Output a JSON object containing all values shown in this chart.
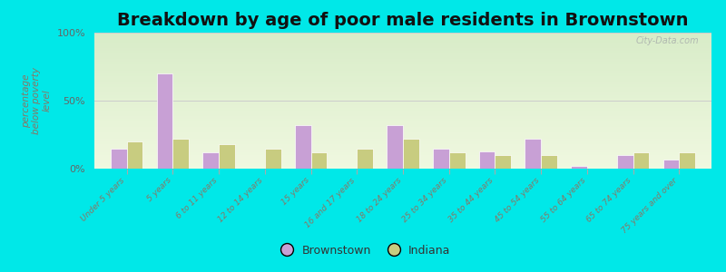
{
  "title": "Breakdown by age of poor male residents in Brownstown",
  "ylabel": "percentage\nbelow poverty\nlevel",
  "categories": [
    "Under 5 years",
    "5 years",
    "6 to 11 years",
    "12 to 14 years",
    "15 years",
    "16 and 17 years",
    "18 to 24 years",
    "25 to 34 years",
    "35 to 44 years",
    "45 to 54 years",
    "55 to 64 years",
    "65 to 74 years",
    "75 years and over"
  ],
  "brownstown": [
    15,
    70,
    12,
    0,
    32,
    0,
    32,
    15,
    13,
    22,
    2,
    10,
    7
  ],
  "indiana": [
    20,
    22,
    18,
    15,
    12,
    15,
    22,
    12,
    10,
    10,
    0,
    12,
    12
  ],
  "brownstown_color": "#c8a0d5",
  "indiana_color": "#c8cc80",
  "bg_gradient_top": "#d8ecc8",
  "bg_gradient_bottom": "#f0f8e0",
  "bg_outer": "#00e8e8",
  "ylim": [
    0,
    100
  ],
  "yticks": [
    0,
    50,
    100
  ],
  "ytick_labels": [
    "0%",
    "50%",
    "100%"
  ],
  "title_fontsize": 14,
  "legend_labels": [
    "Brownstown",
    "Indiana"
  ],
  "watermark": "City-Data.com",
  "tick_label_color": "#887766",
  "ylabel_color": "#887766",
  "title_color": "#111111"
}
